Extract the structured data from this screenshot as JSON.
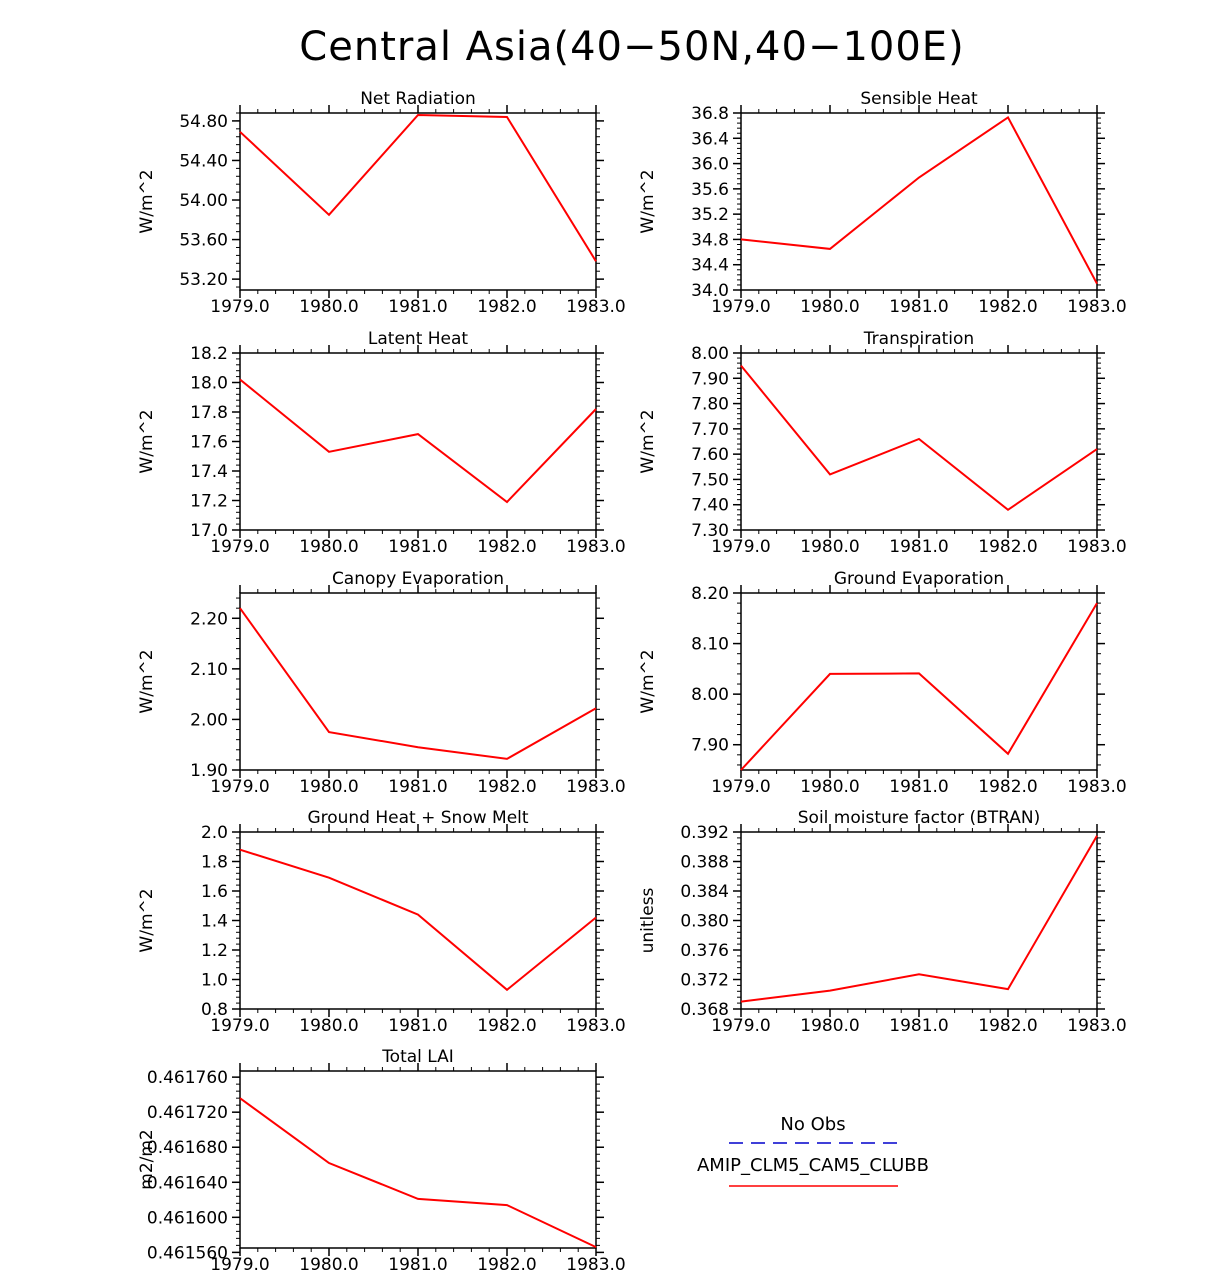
{
  "figure": {
    "title": "Central Asia(40−50N,40−100E)",
    "series_color": "#ff0000",
    "obs_color": "#0000cc"
  },
  "legend": {
    "obs_label": "No Obs",
    "model_label": "AMIP_CLM5_CAM5_CLUBB"
  },
  "chart_data": [
    {
      "type": "line",
      "title": "Net Radiation",
      "ylabel": "W/m^2",
      "x": [
        1979,
        1980,
        1981,
        1982,
        1983
      ],
      "xticks": [
        "1979.0",
        "1980.0",
        "1981.0",
        "1982.0",
        "1983.0"
      ],
      "yticks": [
        "54.80",
        "54.40",
        "54.00",
        "53.60",
        "53.20"
      ],
      "ylim": [
        53.09,
        54.88
      ],
      "series": [
        {
          "name": "AMIP_CLM5_CAM5_CLUBB",
          "values": [
            54.69,
            53.85,
            54.86,
            54.84,
            53.38
          ]
        }
      ]
    },
    {
      "type": "line",
      "title": "Sensible Heat",
      "ylabel": "W/m^2",
      "x": [
        1979,
        1980,
        1981,
        1982,
        1983
      ],
      "xticks": [
        "1979.0",
        "1980.0",
        "1981.0",
        "1982.0",
        "1983.0"
      ],
      "yticks": [
        "36.8",
        "36.4",
        "36.0",
        "35.6",
        "35.2",
        "34.8",
        "34.4",
        "34.0"
      ],
      "ylim": [
        34.0,
        36.8
      ],
      "series": [
        {
          "name": "AMIP_CLM5_CAM5_CLUBB",
          "values": [
            34.8,
            34.65,
            35.78,
            36.73,
            34.1
          ]
        }
      ]
    },
    {
      "type": "line",
      "title": "Latent Heat",
      "ylabel": "W/m^2",
      "x": [
        1979,
        1980,
        1981,
        1982,
        1983
      ],
      "xticks": [
        "1979.0",
        "1980.0",
        "1981.0",
        "1982.0",
        "1983.0"
      ],
      "yticks": [
        "18.2",
        "18.0",
        "17.8",
        "17.6",
        "17.4",
        "17.2",
        "17.0"
      ],
      "ylim": [
        17.0,
        18.2
      ],
      "series": [
        {
          "name": "AMIP_CLM5_CAM5_CLUBB",
          "values": [
            18.02,
            17.53,
            17.65,
            17.19,
            17.82
          ]
        }
      ]
    },
    {
      "type": "line",
      "title": "Transpiration",
      "ylabel": "W/m^2",
      "x": [
        1979,
        1980,
        1981,
        1982,
        1983
      ],
      "xticks": [
        "1979.0",
        "1980.0",
        "1981.0",
        "1982.0",
        "1983.0"
      ],
      "yticks": [
        "8.00",
        "7.90",
        "7.80",
        "7.70",
        "7.60",
        "7.50",
        "7.40",
        "7.30"
      ],
      "ylim": [
        7.3,
        8.0
      ],
      "series": [
        {
          "name": "AMIP_CLM5_CAM5_CLUBB",
          "values": [
            7.95,
            7.52,
            7.66,
            7.38,
            7.62
          ]
        }
      ]
    },
    {
      "type": "line",
      "title": "Canopy Evaporation",
      "ylabel": "W/m^2",
      "x": [
        1979,
        1980,
        1981,
        1982,
        1983
      ],
      "xticks": [
        "1979.0",
        "1980.0",
        "1981.0",
        "1982.0",
        "1983.0"
      ],
      "yticks": [
        "2.20",
        "2.10",
        "2.00",
        "1.90"
      ],
      "ylim": [
        1.9,
        2.25
      ],
      "series": [
        {
          "name": "AMIP_CLM5_CAM5_CLUBB",
          "values": [
            2.22,
            1.975,
            1.945,
            1.922,
            2.022
          ]
        }
      ]
    },
    {
      "type": "line",
      "title": "Ground Evaporation",
      "ylabel": "W/m^2",
      "x": [
        1979,
        1980,
        1981,
        1982,
        1983
      ],
      "xticks": [
        "1979.0",
        "1980.0",
        "1981.0",
        "1982.0",
        "1983.0"
      ],
      "yticks": [
        "8.20",
        "8.10",
        "8.00",
        "7.90"
      ],
      "ylim": [
        7.85,
        8.2
      ],
      "series": [
        {
          "name": "AMIP_CLM5_CAM5_CLUBB",
          "values": [
            7.85,
            8.04,
            8.041,
            7.882,
            8.18
          ]
        }
      ]
    },
    {
      "type": "line",
      "title": "Ground Heat + Snow Melt",
      "ylabel": "W/m^2",
      "x": [
        1979,
        1980,
        1981,
        1982,
        1983
      ],
      "xticks": [
        "1979.0",
        "1980.0",
        "1981.0",
        "1982.0",
        "1983.0"
      ],
      "yticks": [
        "2.0",
        "1.8",
        "1.6",
        "1.4",
        "1.2",
        "1.0",
        "0.8"
      ],
      "ylim": [
        0.8,
        2.0
      ],
      "series": [
        {
          "name": "AMIP_CLM5_CAM5_CLUBB",
          "values": [
            1.88,
            1.69,
            1.44,
            0.93,
            1.42
          ]
        }
      ]
    },
    {
      "type": "line",
      "title": "Soil moisture factor (BTRAN)",
      "ylabel": "unitless",
      "x": [
        1979,
        1980,
        1981,
        1982,
        1983
      ],
      "xticks": [
        "1979.0",
        "1980.0",
        "1981.0",
        "1982.0",
        "1983.0"
      ],
      "yticks": [
        "0.392",
        "0.388",
        "0.384",
        "0.380",
        "0.376",
        "0.372",
        "0.368"
      ],
      "ylim": [
        0.368,
        0.392
      ],
      "series": [
        {
          "name": "AMIP_CLM5_CAM5_CLUBB",
          "values": [
            0.369,
            0.3705,
            0.3727,
            0.3707,
            0.3915
          ]
        }
      ]
    },
    {
      "type": "line",
      "title": "Total LAI",
      "ylabel": "m2/m2",
      "x": [
        1979,
        1980,
        1981,
        1982,
        1983
      ],
      "xticks": [
        "1979.0",
        "1980.0",
        "1981.0",
        "1982.0",
        "1983.0"
      ],
      "yticks": [
        "0.461760",
        "0.461720",
        "0.461680",
        "0.461640",
        "0.461600",
        "0.461560"
      ],
      "ylim": [
        0.461565,
        0.461767
      ],
      "series": [
        {
          "name": "AMIP_CLM5_CAM5_CLUBB",
          "values": [
            0.461736,
            0.461662,
            0.461621,
            0.461614,
            0.461566
          ]
        }
      ]
    }
  ]
}
